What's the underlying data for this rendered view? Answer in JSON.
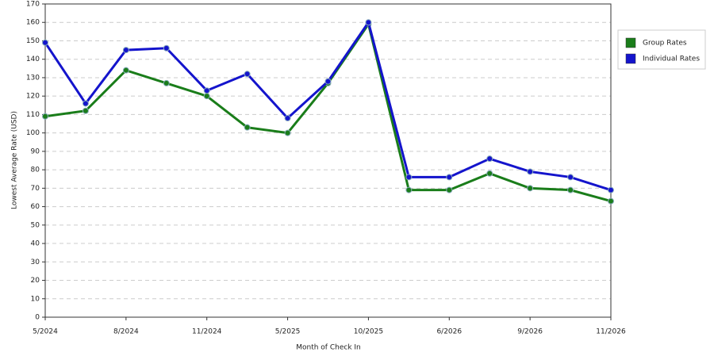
{
  "chart_data": {
    "type": "line",
    "x_label": "Month of Check In",
    "y_label": "Lowest Average Rate (USD)",
    "categories": [
      "5/2024",
      null,
      "8/2024",
      null,
      "11/2024",
      null,
      "5/2025",
      null,
      "10/2025",
      null,
      "6/2026",
      null,
      "9/2026",
      null,
      "11/2026"
    ],
    "series": [
      {
        "name": "Group Rates",
        "color": "#1a7d1a",
        "values": [
          109,
          112,
          134,
          127,
          120,
          103,
          100,
          127,
          159,
          69,
          69,
          78,
          70,
          69,
          63
        ]
      },
      {
        "name": "Individual Rates",
        "color": "#1414cc",
        "values": [
          149,
          116,
          145,
          146,
          123,
          132,
          108,
          128,
          160,
          76,
          76,
          86,
          79,
          76,
          69
        ]
      }
    ],
    "ylim": [
      0,
      170
    ],
    "yticks": [
      0,
      10,
      20,
      30,
      40,
      50,
      60,
      70,
      80,
      90,
      100,
      110,
      120,
      130,
      140,
      150,
      160,
      170
    ],
    "grid": true,
    "legend": "right"
  }
}
